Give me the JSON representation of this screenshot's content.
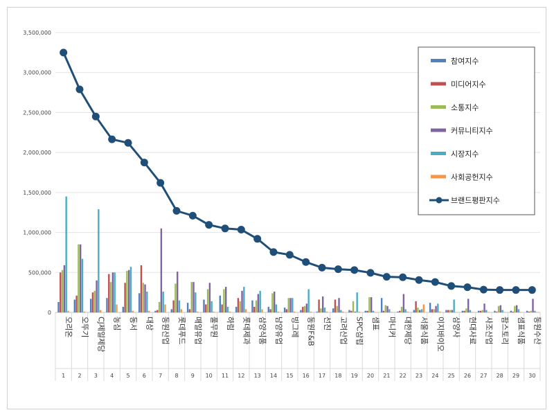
{
  "chart_data": {
    "type": "bar",
    "title": "",
    "xlabel": "",
    "ylabel": "",
    "ylim": [
      0,
      3500000
    ],
    "yticks": [
      "0",
      "500,000",
      "1,000,000",
      "1,500,000",
      "2,000,000",
      "2,500,000",
      "3,000,000",
      "3,500,000"
    ],
    "grid": true,
    "legend_position": "top-right",
    "categories": [
      "오리온",
      "오뚜기",
      "CJ제일제당",
      "농심",
      "동서",
      "대상",
      "동원산업",
      "롯데푸드",
      "매일유업",
      "풀무원",
      "하림",
      "롯데제과",
      "삼양식품",
      "남양유업",
      "빙그레",
      "동원F&B",
      "선진",
      "고려산업",
      "SPC삼립",
      "샘표",
      "마니커",
      "대한제당",
      "서울식품",
      "이지바이오",
      "삼양사",
      "현대사료",
      "사조산업",
      "팜스토리",
      "샘표식품",
      "동원수산"
    ],
    "ranks": [
      "1",
      "2",
      "3",
      "4",
      "5",
      "6",
      "7",
      "8",
      "9",
      "10",
      "11",
      "12",
      "13",
      "14",
      "15",
      "16",
      "17",
      "18",
      "19",
      "20",
      "21",
      "22",
      "23",
      "24",
      "25",
      "26",
      "27",
      "28",
      "29",
      "30"
    ],
    "series": [
      {
        "name": "참여지수",
        "type": "bar",
        "color": "#4f81bd",
        "values": [
          130000,
          160000,
          170000,
          180000,
          70000,
          240000,
          20000,
          40000,
          120000,
          160000,
          210000,
          70000,
          150000,
          70000,
          60000,
          30000,
          10000,
          50000,
          30000,
          20000,
          180000,
          10000,
          30000,
          120000,
          30000,
          20000,
          20000,
          20000,
          20000,
          20000
        ]
      },
      {
        "name": "미디어지수",
        "type": "bar",
        "color": "#c0504d",
        "values": [
          500000,
          210000,
          250000,
          480000,
          370000,
          590000,
          30000,
          150000,
          40000,
          100000,
          100000,
          180000,
          70000,
          40000,
          40000,
          70000,
          160000,
          160000,
          20000,
          20000,
          20000,
          20000,
          140000,
          40000,
          30000,
          20000,
          20000,
          10000,
          10000,
          10000
        ]
      },
      {
        "name": "소통지수",
        "type": "bar",
        "color": "#9bbb59",
        "values": [
          530000,
          850000,
          270000,
          380000,
          520000,
          370000,
          130000,
          360000,
          380000,
          290000,
          290000,
          140000,
          150000,
          240000,
          180000,
          80000,
          50000,
          80000,
          140000,
          190000,
          90000,
          70000,
          60000,
          40000,
          30000,
          50000,
          30000,
          80000,
          80000,
          20000
        ]
      },
      {
        "name": "커뮤니티지수",
        "type": "bar",
        "color": "#8064a2",
        "values": [
          590000,
          850000,
          400000,
          500000,
          530000,
          350000,
          1050000,
          510000,
          380000,
          370000,
          320000,
          270000,
          230000,
          260000,
          180000,
          110000,
          200000,
          180000,
          10000,
          190000,
          80000,
          230000,
          30000,
          80000,
          30000,
          170000,
          110000,
          90000,
          90000,
          170000
        ]
      },
      {
        "name": "시장지수",
        "type": "bar",
        "color": "#4bacc6",
        "values": [
          1450000,
          670000,
          1290000,
          500000,
          570000,
          260000,
          260000,
          150000,
          250000,
          140000,
          70000,
          320000,
          270000,
          100000,
          180000,
          290000,
          60000,
          30000,
          250000,
          20000,
          40000,
          40000,
          40000,
          110000,
          160000,
          30000,
          30000,
          30000,
          40000,
          20000
        ]
      },
      {
        "name": "사회공헌지수",
        "type": "bar",
        "color": "#f79646",
        "values": [
          20000,
          10000,
          30000,
          100000,
          20000,
          20000,
          100000,
          40000,
          10000,
          10000,
          10000,
          40000,
          40000,
          10000,
          10000,
          10000,
          10000,
          10000,
          10000,
          5000,
          5000,
          10000,
          100000,
          10000,
          5000,
          5000,
          5000,
          5000,
          5000,
          5000
        ]
      },
      {
        "name": "브랜드평판지수",
        "type": "line",
        "color": "#1f4e79",
        "values": [
          3250000,
          2790000,
          2450000,
          2165000,
          2120000,
          1875000,
          1620000,
          1270000,
          1210000,
          1095000,
          1050000,
          1035000,
          920000,
          755000,
          720000,
          630000,
          560000,
          540000,
          530000,
          495000,
          445000,
          440000,
          405000,
          380000,
          330000,
          315000,
          285000,
          280000,
          280000,
          280000
        ]
      }
    ]
  }
}
